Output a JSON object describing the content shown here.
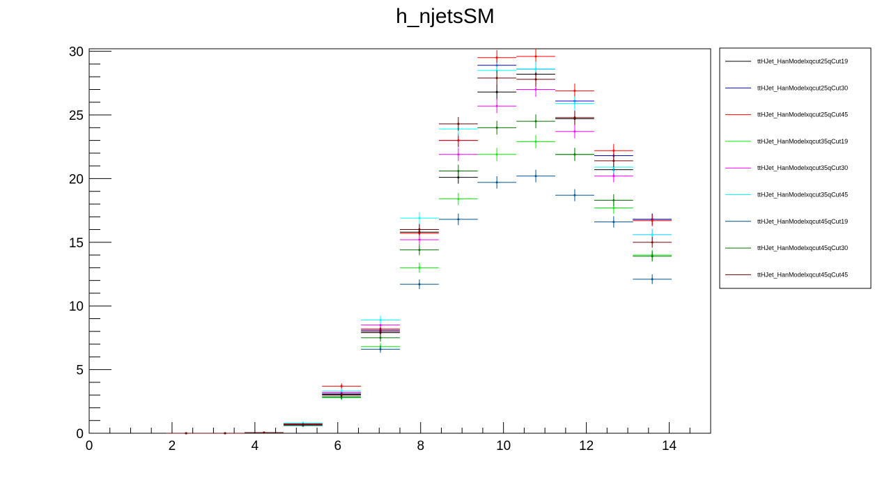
{
  "chart_data": {
    "type": "histogram",
    "title": "h_njetsSM",
    "xlabel": "",
    "ylabel": "",
    "xlim": [
      0,
      15
    ],
    "ylim": [
      0,
      30.2
    ],
    "bin_width": 0.9375,
    "x_ticks": [
      0,
      2,
      4,
      6,
      8,
      10,
      12,
      14
    ],
    "y_ticks": [
      0,
      5,
      10,
      15,
      20,
      25,
      30
    ],
    "grid": false,
    "legend_position": "right",
    "bins": [
      2.34,
      3.28,
      4.22,
      5.16,
      6.09,
      7.03,
      7.97,
      8.91,
      9.84,
      10.78,
      11.72,
      12.66,
      13.59
    ],
    "series": [
      {
        "name": "ttHJet_HanModelxqcut25qCut19",
        "color": "#000000",
        "values": [
          0,
          0,
          0.05,
          0.6,
          3.0,
          7.9,
          15.8,
          20.1,
          26.8,
          28.2,
          24.7,
          20.7,
          16.8
        ]
      },
      {
        "name": "ttHJet_HanModelxqcut25qCut30",
        "color": "#0000cc",
        "values": [
          0,
          0,
          0.05,
          0.7,
          3.1,
          8.1,
          16.0,
          23.0,
          28.9,
          28.6,
          26.1,
          21.8,
          16.8
        ]
      },
      {
        "name": "ttHJet_HanModelxqcut25qCut45",
        "color": "#ff0000",
        "values": [
          0,
          0,
          0.05,
          0.75,
          3.7,
          8.2,
          15.7,
          23.0,
          29.5,
          29.6,
          26.9,
          22.2,
          16.7
        ]
      },
      {
        "name": "ttHJet_HanModelxqcut35qCut19",
        "color": "#00ee00",
        "values": [
          0,
          0,
          0.05,
          0.65,
          2.8,
          6.8,
          13.0,
          18.4,
          21.9,
          22.9,
          21.9,
          17.7,
          14.0
        ]
      },
      {
        "name": "ttHJet_HanModelxqcut35qCut30",
        "color": "#ff00ff",
        "values": [
          0,
          0,
          0.05,
          0.7,
          3.2,
          8.5,
          15.2,
          21.9,
          25.7,
          27.0,
          23.7,
          20.2,
          15.6
        ]
      },
      {
        "name": "ttHJet_HanModelxqcut35qCut45",
        "color": "#00ffff",
        "values": [
          0,
          0,
          0.05,
          0.8,
          3.3,
          8.9,
          16.9,
          23.9,
          28.5,
          28.6,
          25.9,
          20.9,
          15.6
        ]
      },
      {
        "name": "ttHJet_HanModelxqcut45qCut19",
        "color": "#00508c",
        "values": [
          0,
          0,
          0.05,
          0.6,
          2.85,
          6.6,
          11.7,
          16.8,
          19.7,
          20.2,
          18.7,
          16.6,
          12.1
        ]
      },
      {
        "name": "ttHJet_HanModelxqcut45qCut30",
        "color": "#007000",
        "values": [
          0,
          0,
          0.05,
          0.65,
          2.85,
          7.5,
          14.4,
          20.6,
          24.0,
          24.5,
          21.9,
          18.3,
          13.9
        ]
      },
      {
        "name": "ttHJet_HanModelxqcut45qCut45",
        "color": "#700000",
        "values": [
          0,
          0,
          0.05,
          0.7,
          3.05,
          8.0,
          16.0,
          24.3,
          27.9,
          27.8,
          24.8,
          21.4,
          15.0
        ]
      }
    ]
  }
}
